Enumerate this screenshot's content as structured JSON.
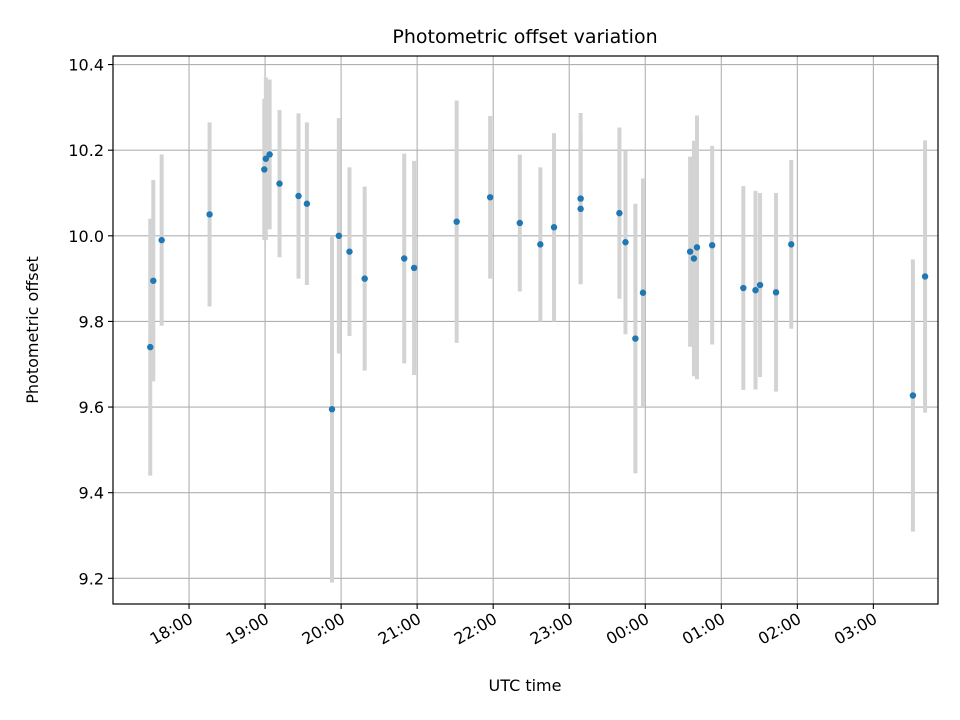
{
  "chart_data": {
    "type": "scatter",
    "title": "Photometric offset variation",
    "xlabel": "UTC time",
    "ylabel": "Photometric offset",
    "x_unit": "hours, UTC (values past 24 fall after midnight)",
    "xlim": [
      17.0,
      27.85
    ],
    "ylim": [
      9.14,
      10.42
    ],
    "x_ticks": [
      18,
      19,
      20,
      21,
      22,
      23,
      24,
      25,
      26,
      27
    ],
    "x_tick_labels": [
      "18:00",
      "19:00",
      "20:00",
      "21:00",
      "22:00",
      "23:00",
      "00:00",
      "01:00",
      "02:00",
      "03:00"
    ],
    "y_ticks": [
      9.2,
      9.4,
      9.6,
      9.8,
      10.0,
      10.2,
      10.4
    ],
    "y_tick_labels": [
      "9.2",
      "9.4",
      "9.6",
      "9.8",
      "10.0",
      "10.2",
      "10.4"
    ],
    "grid": true,
    "marker_color": "#1f77b4",
    "errorbar_color": "#d3d3d3",
    "points": [
      {
        "x": 17.49,
        "y": 9.74,
        "err": 0.3
      },
      {
        "x": 17.53,
        "y": 9.895,
        "err": 0.235
      },
      {
        "x": 17.64,
        "y": 9.99,
        "err": 0.2
      },
      {
        "x": 18.27,
        "y": 10.05,
        "err": 0.215
      },
      {
        "x": 18.99,
        "y": 10.155,
        "err": 0.165
      },
      {
        "x": 19.01,
        "y": 10.18,
        "err": 0.19
      },
      {
        "x": 19.06,
        "y": 10.19,
        "err": 0.175
      },
      {
        "x": 19.19,
        "y": 10.122,
        "err": 0.172
      },
      {
        "x": 19.44,
        "y": 10.093,
        "err": 0.193
      },
      {
        "x": 19.55,
        "y": 10.075,
        "err": 0.19
      },
      {
        "x": 19.88,
        "y": 9.595,
        "err": 0.405
      },
      {
        "x": 19.97,
        "y": 10.0,
        "err": 0.275
      },
      {
        "x": 20.11,
        "y": 9.963,
        "err": 0.197
      },
      {
        "x": 20.31,
        "y": 9.9,
        "err": 0.215
      },
      {
        "x": 20.83,
        "y": 9.947,
        "err": 0.245
      },
      {
        "x": 20.96,
        "y": 9.925,
        "err": 0.25
      },
      {
        "x": 21.52,
        "y": 10.033,
        "err": 0.283
      },
      {
        "x": 21.96,
        "y": 10.09,
        "err": 0.19
      },
      {
        "x": 22.35,
        "y": 10.03,
        "err": 0.16
      },
      {
        "x": 22.62,
        "y": 9.98,
        "err": 0.18
      },
      {
        "x": 22.8,
        "y": 10.02,
        "err": 0.22
      },
      {
        "x": 23.15,
        "y": 10.087,
        "err": 0.2
      },
      {
        "x": 23.15,
        "y": 10.063,
        "err": 0.175
      },
      {
        "x": 23.66,
        "y": 10.053,
        "err": 0.2
      },
      {
        "x": 23.74,
        "y": 9.985,
        "err": 0.215
      },
      {
        "x": 23.87,
        "y": 9.76,
        "err": 0.315
      },
      {
        "x": 23.97,
        "y": 9.867,
        "err": 0.267
      },
      {
        "x": 24.59,
        "y": 9.963,
        "err": 0.222
      },
      {
        "x": 24.64,
        "y": 9.947,
        "err": 0.275
      },
      {
        "x": 24.68,
        "y": 9.973,
        "err": 0.308
      },
      {
        "x": 24.88,
        "y": 9.978,
        "err": 0.232
      },
      {
        "x": 25.29,
        "y": 9.878,
        "err": 0.238
      },
      {
        "x": 25.45,
        "y": 9.873,
        "err": 0.232
      },
      {
        "x": 25.51,
        "y": 9.885,
        "err": 0.215
      },
      {
        "x": 25.72,
        "y": 9.868,
        "err": 0.232
      },
      {
        "x": 25.92,
        "y": 9.98,
        "err": 0.197
      },
      {
        "x": 27.52,
        "y": 9.627,
        "err": 0.318
      },
      {
        "x": 27.68,
        "y": 9.905,
        "err": 0.318
      }
    ]
  }
}
